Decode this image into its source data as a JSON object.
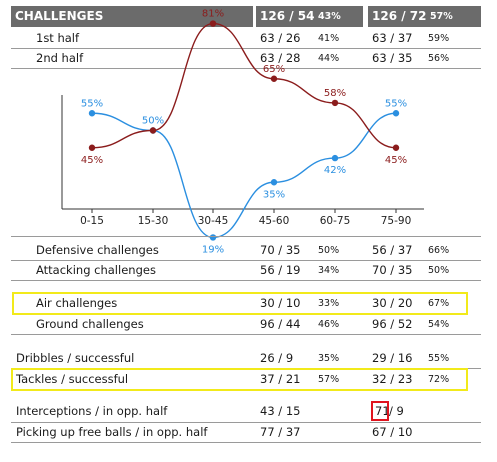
{
  "header": {
    "title": "CHALLENGES",
    "team1_value": "126 / 54",
    "team1_pct": "43%",
    "team2_value": "126 / 72",
    "team2_pct": "57%"
  },
  "halves": [
    {
      "label": "1st half",
      "t1": "63 / 26",
      "t1_pct": "41%",
      "t2": "63 / 37",
      "t2_pct": "59%"
    },
    {
      "label": "2nd half",
      "t1": "63 / 28",
      "t1_pct": "44%",
      "t2": "63 / 35",
      "t2_pct": "56%"
    }
  ],
  "chart_data": {
    "type": "line",
    "categories": [
      "0-15",
      "15-30",
      "30-45",
      "45-60",
      "60-75",
      "75-90"
    ],
    "series": [
      {
        "color": "#2b8fe0",
        "values": [
          55,
          50,
          19,
          35,
          42,
          55
        ],
        "labels": [
          "55%",
          "50%",
          "19%",
          "35%",
          "42%",
          "55%"
        ]
      },
      {
        "color": "#8b1c1c",
        "values": [
          45,
          50,
          81,
          65,
          58,
          45
        ],
        "labels": [
          "45%",
          "",
          "81%",
          "65%",
          "58%",
          "45%"
        ]
      }
    ],
    "ylim": [
      0,
      100
    ],
    "grid": false
  },
  "stats": [
    {
      "label": "Defensive challenges",
      "t1": "70 / 35",
      "t1_pct": "50%",
      "t2": "56 / 37",
      "t2_pct": "66%"
    },
    {
      "label": "Attacking challenges",
      "t1": "56 / 19",
      "t1_pct": "34%",
      "t2": "70 / 35",
      "t2_pct": "50%"
    },
    {
      "label": "Air challenges",
      "t1": "30 / 10",
      "t1_pct": "33%",
      "t2": "30 / 20",
      "t2_pct": "67%",
      "highlight": true
    },
    {
      "label": "Ground challenges",
      "t1": "96 / 44",
      "t1_pct": "46%",
      "t2": "96 / 52",
      "t2_pct": "54%"
    },
    {
      "label": "Dribbles / successful",
      "t1": "26 / 9",
      "t1_pct": "35%",
      "t2": "29 / 16",
      "t2_pct": "55%"
    },
    {
      "label": "Tackles / successful",
      "t1": "37 / 21",
      "t1_pct": "57%",
      "t2": "32 / 23",
      "t2_pct": "72%",
      "highlight": true
    },
    {
      "label": "Interceptions / in opp. half",
      "t1": "43 / 15",
      "t1_pct": "",
      "t2_first": "71",
      "t2_rest": " / 9",
      "t2_pct": ""
    },
    {
      "label": "Picking up free balls / in opp. half",
      "t1": "77 / 37",
      "t1_pct": "",
      "t2": "67 / 10",
      "t2_pct": ""
    }
  ],
  "colors": {
    "header_bg": "#6b6b6b",
    "highlight": "#f2ea1a",
    "red_box": "#e0141e"
  }
}
